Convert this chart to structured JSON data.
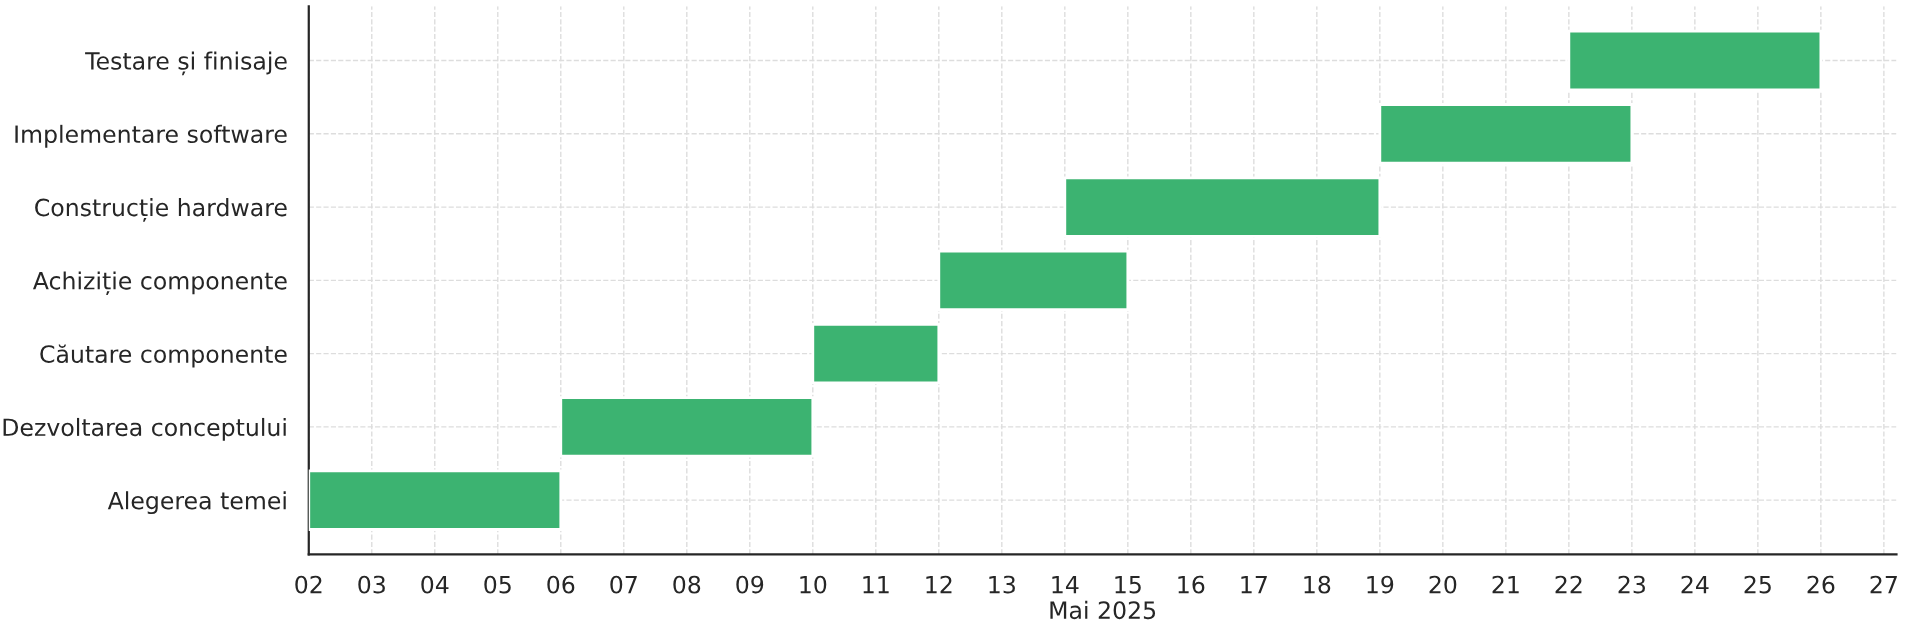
{
  "chart_data": {
    "type": "bar",
    "orientation": "horizontal",
    "xlabel": "Mai 2025",
    "categories": [
      "Testare și finisaje",
      "Implementare software",
      "Construcție hardware",
      "Achiziție componente",
      "Căutare componente",
      "Dezvoltarea conceptului",
      "Alegerea temei"
    ],
    "base": [
      22,
      19,
      14,
      12,
      10,
      6,
      2
    ],
    "values": [
      4,
      4,
      5,
      3,
      2,
      4,
      4
    ],
    "color": "#3cb371",
    "xlim": [
      2,
      27.2
    ],
    "xticks": [
      {
        "value": 2,
        "label": "02"
      },
      {
        "value": 3,
        "label": "03"
      },
      {
        "value": 4,
        "label": "04"
      },
      {
        "value": 5,
        "label": "05"
      },
      {
        "value": 6,
        "label": "06"
      },
      {
        "value": 7,
        "label": "07"
      },
      {
        "value": 8,
        "label": "08"
      },
      {
        "value": 9,
        "label": "09"
      },
      10,
      11,
      12,
      13,
      14,
      15,
      16,
      17,
      18,
      19,
      20,
      21,
      22,
      23,
      24,
      25,
      26,
      27
    ],
    "grid": true
  }
}
